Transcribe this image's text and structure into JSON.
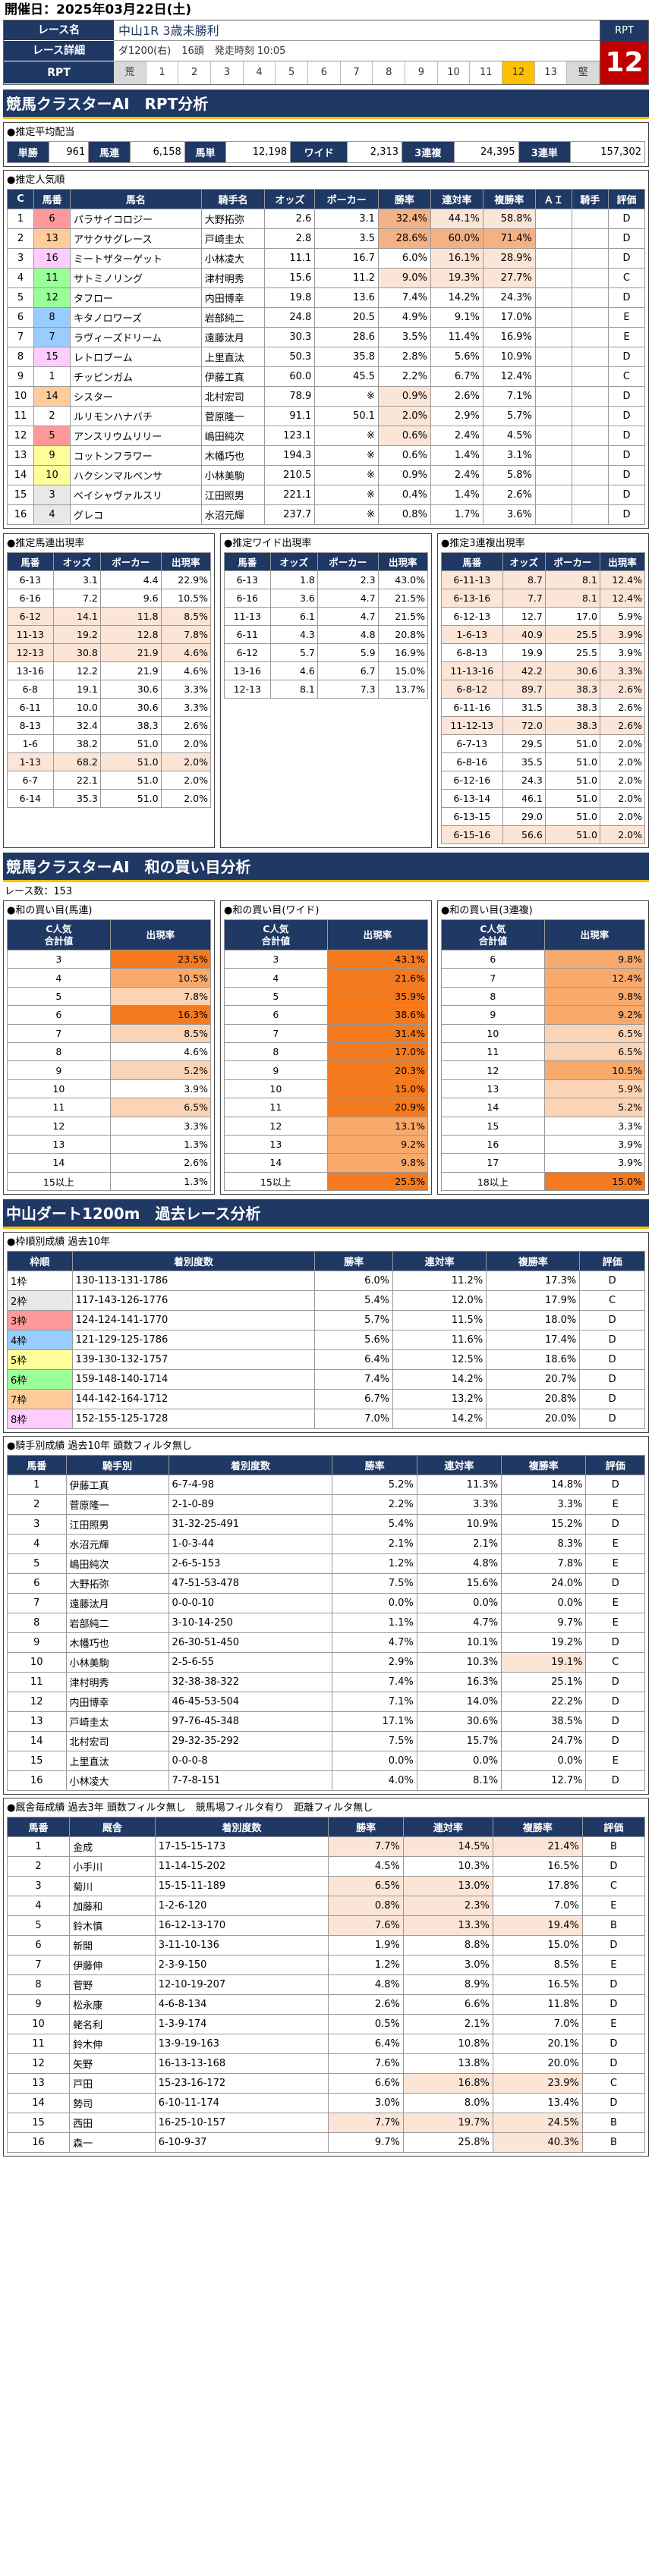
{
  "header": {
    "date": "開催日：2025年03月22日(土)"
  },
  "race": {
    "name_label": "レース名",
    "detail_label": "レース詳細",
    "rpt_label": "RPT",
    "name": "中山1R 3歳未勝利",
    "detail": [
      "ダ1200(右)",
      "16頭",
      "発走時刻 10:05"
    ],
    "rpt_cells": [
      "荒",
      "1",
      "2",
      "3",
      "4",
      "5",
      "6",
      "7",
      "8",
      "9",
      "10",
      "11",
      "12",
      "13",
      "堅"
    ],
    "rpt_selected": "12",
    "rpt_title": "RPT",
    "rpt_value": "12"
  },
  "sec1": {
    "title": "競馬クラスターAI　RPT分析",
    "pay_title": "●推定平均配当",
    "pay": [
      {
        "k": "単勝",
        "v": "961"
      },
      {
        "k": "馬連",
        "v": "6,158"
      },
      {
        "k": "馬単",
        "v": "12,198"
      },
      {
        "k": "ワイド",
        "v": "2,313"
      },
      {
        "k": "3連複",
        "v": "24,395"
      },
      {
        "k": "3連単",
        "v": "157,302"
      }
    ],
    "pop_title": "●推定人気順",
    "pop_cols": [
      "C",
      "馬番",
      "馬名",
      "騎手名",
      "オッズ",
      "ポーカー",
      "勝率",
      "連対率",
      "複勝率",
      "ＡＩ",
      "騎手",
      "評価"
    ],
    "pop": [
      [
        "1",
        "6",
        "パラサイコロジー",
        "大野拓弥",
        "2.6",
        "3.1",
        "32.4%",
        "44.1%",
        "58.8%",
        "",
        "",
        "D"
      ],
      [
        "2",
        "13",
        "アサクサグレース",
        "戸崎圭太",
        "2.8",
        "3.5",
        "28.6%",
        "60.0%",
        "71.4%",
        "",
        "",
        "D"
      ],
      [
        "3",
        "16",
        "ミートザターゲット",
        "小林凌大",
        "11.1",
        "16.7",
        "6.0%",
        "16.1%",
        "28.9%",
        "",
        "",
        "D"
      ],
      [
        "4",
        "11",
        "サトミノリング",
        "津村明秀",
        "15.6",
        "11.2",
        "9.0%",
        "19.3%",
        "27.7%",
        "",
        "",
        "C"
      ],
      [
        "5",
        "12",
        "タフロー",
        "内田博幸",
        "19.8",
        "13.6",
        "7.4%",
        "14.2%",
        "24.3%",
        "",
        "",
        "D"
      ],
      [
        "6",
        "8",
        "キタノロワーズ",
        "岩部純二",
        "24.8",
        "20.5",
        "4.9%",
        "9.1%",
        "17.0%",
        "",
        "",
        "E"
      ],
      [
        "7",
        "7",
        "ラヴィーズドリーム",
        "遠藤汰月",
        "30.3",
        "28.6",
        "3.5%",
        "11.4%",
        "16.9%",
        "",
        "",
        "E"
      ],
      [
        "8",
        "15",
        "レトロブーム",
        "上里直汰",
        "50.3",
        "35.8",
        "2.8%",
        "5.6%",
        "10.9%",
        "",
        "",
        "D"
      ],
      [
        "9",
        "1",
        "チッピンガム",
        "伊藤工真",
        "60.0",
        "45.5",
        "2.2%",
        "6.7%",
        "12.4%",
        "",
        "",
        "C"
      ],
      [
        "10",
        "14",
        "シスター",
        "北村宏司",
        "78.9",
        "※",
        "0.9%",
        "2.6%",
        "7.1%",
        "",
        "",
        "D"
      ],
      [
        "11",
        "2",
        "ルリモンハナバチ",
        "菅原隆一",
        "91.1",
        "50.1",
        "2.0%",
        "2.9%",
        "5.7%",
        "",
        "",
        "D"
      ],
      [
        "12",
        "5",
        "アンスリウムリリー",
        "嶋田純次",
        "123.1",
        "※",
        "0.6%",
        "2.4%",
        "4.5%",
        "",
        "",
        "D"
      ],
      [
        "13",
        "9",
        "コットンフラワー",
        "木幡巧也",
        "194.3",
        "※",
        "0.6%",
        "1.4%",
        "3.1%",
        "",
        "",
        "D"
      ],
      [
        "14",
        "10",
        "ハクシンマルペンサ",
        "小林美駒",
        "210.5",
        "※",
        "0.9%",
        "2.4%",
        "5.8%",
        "",
        "",
        "D"
      ],
      [
        "15",
        "3",
        "ベイシャヴァルスリ",
        "江田照男",
        "221.1",
        "※",
        "0.4%",
        "1.4%",
        "2.6%",
        "",
        "",
        "D"
      ],
      [
        "16",
        "4",
        "グレコ",
        "水沼元輝",
        "237.7",
        "※",
        "0.8%",
        "1.7%",
        "3.6%",
        "",
        "",
        "D"
      ]
    ],
    "umaren_title": "●推定馬連出現率",
    "wide_title": "●推定ワイド出現率",
    "tri_title": "●推定3連複出現率",
    "pair_cols": [
      "馬番",
      "オッズ",
      "ポーカー",
      "出現率"
    ],
    "umaren": [
      [
        "6-13",
        "3.1",
        "4.4",
        "22.9%"
      ],
      [
        "6-16",
        "7.2",
        "9.6",
        "10.5%"
      ],
      [
        "6-12",
        "14.1",
        "11.8",
        "8.5%"
      ],
      [
        "11-13",
        "19.2",
        "12.8",
        "7.8%"
      ],
      [
        "12-13",
        "30.8",
        "21.9",
        "4.6%"
      ],
      [
        "13-16",
        "12.2",
        "21.9",
        "4.6%"
      ],
      [
        "6-8",
        "19.1",
        "30.6",
        "3.3%"
      ],
      [
        "6-11",
        "10.0",
        "30.6",
        "3.3%"
      ],
      [
        "8-13",
        "32.4",
        "38.3",
        "2.6%"
      ],
      [
        "1-6",
        "38.2",
        "51.0",
        "2.0%"
      ],
      [
        "1-13",
        "68.2",
        "51.0",
        "2.0%"
      ],
      [
        "6-7",
        "22.1",
        "51.0",
        "2.0%"
      ],
      [
        "6-14",
        "35.3",
        "51.0",
        "2.0%"
      ]
    ],
    "wide": [
      [
        "6-13",
        "1.8",
        "2.3",
        "43.0%"
      ],
      [
        "6-16",
        "3.6",
        "4.7",
        "21.5%"
      ],
      [
        "11-13",
        "6.1",
        "4.7",
        "21.5%"
      ],
      [
        "6-11",
        "4.3",
        "4.8",
        "20.8%"
      ],
      [
        "6-12",
        "5.7",
        "5.9",
        "16.9%"
      ],
      [
        "13-16",
        "4.6",
        "6.7",
        "15.0%"
      ],
      [
        "12-13",
        "8.1",
        "7.3",
        "13.7%"
      ]
    ],
    "tri": [
      [
        "6-11-13",
        "8.7",
        "8.1",
        "12.4%"
      ],
      [
        "6-13-16",
        "7.7",
        "8.1",
        "12.4%"
      ],
      [
        "6-12-13",
        "12.7",
        "17.0",
        "5.9%"
      ],
      [
        "1-6-13",
        "40.9",
        "25.5",
        "3.9%"
      ],
      [
        "6-8-13",
        "19.9",
        "25.5",
        "3.9%"
      ],
      [
        "11-13-16",
        "42.2",
        "30.6",
        "3.3%"
      ],
      [
        "6-8-12",
        "89.7",
        "38.3",
        "2.6%"
      ],
      [
        "6-11-16",
        "31.5",
        "38.3",
        "2.6%"
      ],
      [
        "11-12-13",
        "72.0",
        "38.3",
        "2.6%"
      ],
      [
        "6-7-13",
        "29.5",
        "51.0",
        "2.0%"
      ],
      [
        "6-8-16",
        "35.5",
        "51.0",
        "2.0%"
      ],
      [
        "6-12-16",
        "24.3",
        "51.0",
        "2.0%"
      ],
      [
        "6-13-14",
        "46.1",
        "51.0",
        "2.0%"
      ],
      [
        "6-13-15",
        "29.0",
        "51.0",
        "2.0%"
      ],
      [
        "6-15-16",
        "56.6",
        "51.0",
        "2.0%"
      ]
    ]
  },
  "sec2": {
    "title": "競馬クラスターAI　和の買い目分析",
    "count": "レース数：153",
    "umaren_title": "●和の買い目(馬連)",
    "wide_title": "●和の買い目(ワイド)",
    "tri_title": "●和の買い目(3連複)",
    "col_a": "C人気\n合計値",
    "col_b": "出現率",
    "umaren": [
      [
        "3",
        "23.5%"
      ],
      [
        "4",
        "10.5%"
      ],
      [
        "5",
        "7.8%"
      ],
      [
        "6",
        "16.3%"
      ],
      [
        "7",
        "8.5%"
      ],
      [
        "8",
        "4.6%"
      ],
      [
        "9",
        "5.2%"
      ],
      [
        "10",
        "3.9%"
      ],
      [
        "11",
        "6.5%"
      ],
      [
        "12",
        "3.3%"
      ],
      [
        "13",
        "1.3%"
      ],
      [
        "14",
        "2.6%"
      ],
      [
        "15以上",
        "1.3%"
      ]
    ],
    "wide": [
      [
        "3",
        "43.1%"
      ],
      [
        "4",
        "21.6%"
      ],
      [
        "5",
        "35.9%"
      ],
      [
        "6",
        "38.6%"
      ],
      [
        "7",
        "31.4%"
      ],
      [
        "8",
        "17.0%"
      ],
      [
        "9",
        "20.3%"
      ],
      [
        "10",
        "15.0%"
      ],
      [
        "11",
        "20.9%"
      ],
      [
        "12",
        "13.1%"
      ],
      [
        "13",
        "9.2%"
      ],
      [
        "14",
        "9.8%"
      ],
      [
        "15以上",
        "25.5%"
      ]
    ],
    "tri": [
      [
        "6",
        "9.8%"
      ],
      [
        "7",
        "12.4%"
      ],
      [
        "8",
        "9.8%"
      ],
      [
        "9",
        "9.2%"
      ],
      [
        "10",
        "6.5%"
      ],
      [
        "11",
        "6.5%"
      ],
      [
        "12",
        "10.5%"
      ],
      [
        "13",
        "5.9%"
      ],
      [
        "14",
        "5.2%"
      ],
      [
        "15",
        "3.3%"
      ],
      [
        "16",
        "3.9%"
      ],
      [
        "17",
        "3.9%"
      ],
      [
        "18以上",
        "15.0%"
      ]
    ]
  },
  "sec3": {
    "title": "中山ダート1200m　過去レース分析",
    "waku_title": "●枠順別成績 過去10年",
    "waku_cols": [
      "枠順",
      "着別度数",
      "勝率",
      "連対率",
      "複勝率",
      "評価"
    ],
    "waku": [
      [
        "1枠",
        "130-113-131-1786",
        "6.0%",
        "11.2%",
        "17.3%",
        "D"
      ],
      [
        "2枠",
        "117-143-126-1776",
        "5.4%",
        "12.0%",
        "17.9%",
        "C"
      ],
      [
        "3枠",
        "124-124-141-1770",
        "5.7%",
        "11.5%",
        "18.0%",
        "D"
      ],
      [
        "4枠",
        "121-129-125-1786",
        "5.6%",
        "11.6%",
        "17.4%",
        "D"
      ],
      [
        "5枠",
        "139-130-132-1757",
        "6.4%",
        "12.5%",
        "18.6%",
        "D"
      ],
      [
        "6枠",
        "159-148-140-1714",
        "7.4%",
        "14.2%",
        "20.7%",
        "D"
      ],
      [
        "7枠",
        "144-142-164-1712",
        "6.7%",
        "13.2%",
        "20.8%",
        "D"
      ],
      [
        "8枠",
        "152-155-125-1728",
        "7.0%",
        "14.2%",
        "20.0%",
        "D"
      ]
    ],
    "jockey_title": "●騎手別成績 過去10年 頭数フィルタ無し",
    "jockey_cols": [
      "馬番",
      "騎手別",
      "着別度数",
      "勝率",
      "連対率",
      "複勝率",
      "評価"
    ],
    "jockey": [
      [
        "1",
        "伊藤工真",
        "6-7-4-98",
        "5.2%",
        "11.3%",
        "14.8%",
        "D"
      ],
      [
        "2",
        "菅原隆一",
        "2-1-0-89",
        "2.2%",
        "3.3%",
        "3.3%",
        "E"
      ],
      [
        "3",
        "江田照男",
        "31-32-25-491",
        "5.4%",
        "10.9%",
        "15.2%",
        "D"
      ],
      [
        "4",
        "水沼元輝",
        "1-0-3-44",
        "2.1%",
        "2.1%",
        "8.3%",
        "E"
      ],
      [
        "5",
        "嶋田純次",
        "2-6-5-153",
        "1.2%",
        "4.8%",
        "7.8%",
        "E"
      ],
      [
        "6",
        "大野拓弥",
        "47-51-53-478",
        "7.5%",
        "15.6%",
        "24.0%",
        "D"
      ],
      [
        "7",
        "遠藤汰月",
        "0-0-0-10",
        "0.0%",
        "0.0%",
        "0.0%",
        "E"
      ],
      [
        "8",
        "岩部純二",
        "3-10-14-250",
        "1.1%",
        "4.7%",
        "9.7%",
        "E"
      ],
      [
        "9",
        "木幡巧也",
        "26-30-51-450",
        "4.7%",
        "10.1%",
        "19.2%",
        "D"
      ],
      [
        "10",
        "小林美駒",
        "2-5-6-55",
        "2.9%",
        "10.3%",
        "19.1%",
        "C"
      ],
      [
        "11",
        "津村明秀",
        "32-38-38-322",
        "7.4%",
        "16.3%",
        "25.1%",
        "D"
      ],
      [
        "12",
        "内田博幸",
        "46-45-53-504",
        "7.1%",
        "14.0%",
        "22.2%",
        "D"
      ],
      [
        "13",
        "戸崎圭太",
        "97-76-45-348",
        "17.1%",
        "30.6%",
        "38.5%",
        "D"
      ],
      [
        "14",
        "北村宏司",
        "29-32-35-292",
        "7.5%",
        "15.7%",
        "24.7%",
        "D"
      ],
      [
        "15",
        "上里直汰",
        "0-0-0-8",
        "0.0%",
        "0.0%",
        "0.0%",
        "E"
      ],
      [
        "16",
        "小林凌大",
        "7-7-8-151",
        "4.0%",
        "8.1%",
        "12.7%",
        "D"
      ]
    ],
    "trainer_title": "●厩舎毎成績 過去3年 頭数フィルタ無し　競馬場フィルタ有り　距離フィルタ無し",
    "trainer_cols": [
      "馬番",
      "厩舎",
      "着別度数",
      "勝率",
      "連対率",
      "複勝率",
      "評価"
    ],
    "trainer": [
      [
        "1",
        "金成",
        "17-15-15-173",
        "7.7%",
        "14.5%",
        "21.4%",
        "B"
      ],
      [
        "2",
        "小手川",
        "11-14-15-202",
        "4.5%",
        "10.3%",
        "16.5%",
        "D"
      ],
      [
        "3",
        "菊川",
        "15-15-11-189",
        "6.5%",
        "13.0%",
        "17.8%",
        "C"
      ],
      [
        "4",
        "加藤和",
        "1-2-6-120",
        "0.8%",
        "2.3%",
        "7.0%",
        "E"
      ],
      [
        "5",
        "鈴木慎",
        "16-12-13-170",
        "7.6%",
        "13.3%",
        "19.4%",
        "B"
      ],
      [
        "6",
        "新開",
        "3-11-10-136",
        "1.9%",
        "8.8%",
        "15.0%",
        "D"
      ],
      [
        "7",
        "伊藤伸",
        "2-3-9-150",
        "1.2%",
        "3.0%",
        "8.5%",
        "E"
      ],
      [
        "8",
        "菅野",
        "12-10-19-207",
        "4.8%",
        "8.9%",
        "16.5%",
        "D"
      ],
      [
        "9",
        "松永康",
        "4-6-8-134",
        "2.6%",
        "6.6%",
        "11.8%",
        "D"
      ],
      [
        "10",
        "蛯名利",
        "1-3-9-174",
        "0.5%",
        "2.1%",
        "7.0%",
        "E"
      ],
      [
        "11",
        "鈴木伸",
        "13-9-19-163",
        "6.4%",
        "10.8%",
        "20.1%",
        "D"
      ],
      [
        "12",
        "矢野",
        "16-13-13-168",
        "7.6%",
        "13.8%",
        "20.0%",
        "D"
      ],
      [
        "13",
        "戸田",
        "15-23-16-172",
        "6.6%",
        "16.8%",
        "23.9%",
        "C"
      ],
      [
        "14",
        "勢司",
        "6-10-11-174",
        "3.0%",
        "8.0%",
        "13.4%",
        "D"
      ],
      [
        "15",
        "西田",
        "16-25-10-157",
        "7.7%",
        "19.7%",
        "24.5%",
        "B"
      ],
      [
        "16",
        "森一",
        "6-10-9-37",
        "9.7%",
        "25.8%",
        "40.3%",
        "B"
      ]
    ]
  }
}
